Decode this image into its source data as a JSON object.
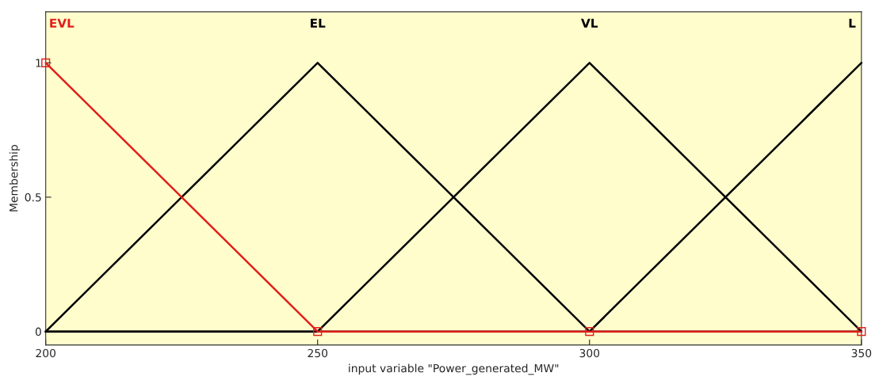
{
  "chart_data": {
    "type": "line",
    "xlabel": "input variable \"Power_generated_MW\"",
    "ylabel": "Membership",
    "x": [
      200,
      250,
      300,
      350
    ],
    "series": [
      {
        "name": "EVL",
        "color": "#e0201a",
        "values": [
          1,
          0,
          0,
          0
        ],
        "marker": "square"
      },
      {
        "name": "EL",
        "color": "#000000",
        "values": [
          0,
          1,
          0,
          0
        ]
      },
      {
        "name": "VL",
        "color": "#000000",
        "values": [
          0,
          0,
          1,
          0
        ]
      },
      {
        "name": "L",
        "color": "#000000",
        "values": [
          0,
          0,
          0,
          1
        ]
      }
    ],
    "xlim": [
      200,
      350
    ],
    "xticks": [
      200,
      250,
      300,
      350
    ],
    "ylim": [
      -0.05,
      1.19
    ],
    "yticks": [
      0,
      0.5,
      1
    ],
    "grid": false,
    "legend": false,
    "marker": "none",
    "line_style": "solid"
  }
}
